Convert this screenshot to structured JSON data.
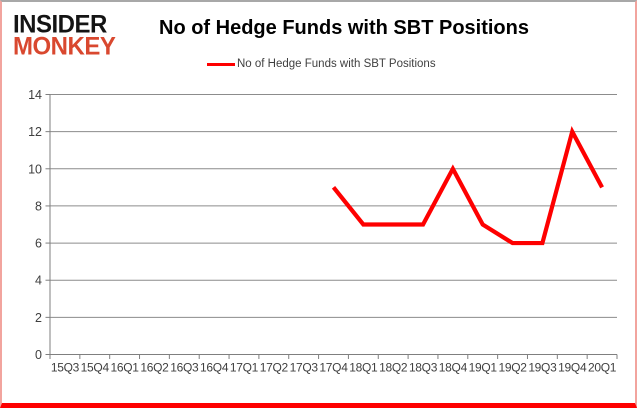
{
  "header": {
    "logo_line1": "INSIDER",
    "logo_line2": "MONKEY",
    "title": "No of Hedge Funds with SBT Positions"
  },
  "legend": {
    "label": "No of Hedge Funds with SBT Positions",
    "swatch_color": "#fe0000",
    "position": "top"
  },
  "chart_data": {
    "type": "line",
    "title": "No of Hedge Funds with SBT Positions",
    "categories": [
      "15Q3",
      "15Q4",
      "16Q1",
      "16Q2",
      "16Q3",
      "16Q4",
      "17Q1",
      "17Q2",
      "17Q3",
      "17Q4",
      "18Q1",
      "18Q2",
      "18Q3",
      "18Q4",
      "19Q1",
      "19Q2",
      "19Q3",
      "19Q4",
      "20Q1"
    ],
    "series": [
      {
        "name": "No of Hedge Funds with SBT Positions",
        "color": "#fe0000",
        "values": [
          null,
          null,
          null,
          null,
          null,
          null,
          null,
          null,
          null,
          9,
          7,
          7,
          7,
          10,
          7,
          6,
          6,
          12,
          9
        ]
      }
    ],
    "xlabel": "",
    "ylabel": "",
    "ylim": [
      0,
      14
    ],
    "yticks": [
      0,
      2,
      4,
      6,
      8,
      10,
      12,
      14
    ],
    "grid": true,
    "legend_position": "top"
  },
  "colors": {
    "line": "#fe0000",
    "grid": "#8c8c8c",
    "axis": "#7f7f7f",
    "tick_label": "#3f3f3f",
    "title_text": "#000000",
    "legend_text": "#404040",
    "logo_black": "#141414",
    "logo_red": "#d9482f",
    "border_bottom": "#fe0000",
    "border_sides": "#f2a49e",
    "border_top": "#a8a8a8"
  }
}
